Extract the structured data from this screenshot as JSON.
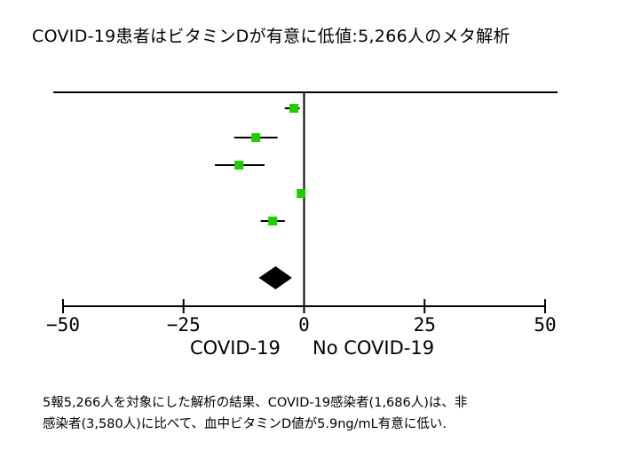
{
  "title": "COVID-19患者はビタミンDが有意に低値:5,266人のメタ解析",
  "caption": {
    "line1": "5報5,266人を対象にした解析の結果、COVID-19感染者(1,686人)は、非",
    "line2": "感染者(3,580人)に比べて、血中ビタミンD値が5.9ng/mL有意に低い."
  },
  "chart_data": {
    "type": "forest",
    "xlim": [
      -50,
      50
    ],
    "xticks": [
      -50,
      -25,
      0,
      25,
      50
    ],
    "xtick_labels": [
      "−50",
      "−25",
      "0",
      "25",
      "50"
    ],
    "xlabel_left": "COVID-19",
    "xlabel_right": "No COVID-19",
    "studies": [
      {
        "estimate": -2.1,
        "ci": [
          -4.0,
          -0.9
        ]
      },
      {
        "estimate": -10.0,
        "ci": [
          -14.5,
          -5.5
        ]
      },
      {
        "estimate": -13.5,
        "ci": [
          -18.5,
          -8.2
        ]
      },
      {
        "estimate": -0.6,
        "ci": [
          -0.9,
          -0.3
        ]
      },
      {
        "estimate": -6.5,
        "ci": [
          -9.0,
          -4.0
        ]
      }
    ],
    "pooled": {
      "estimate": -5.9,
      "ci": [
        -9.4,
        -2.5
      ]
    },
    "marker_color": "#22cc00",
    "pooled_color": "#000000"
  }
}
